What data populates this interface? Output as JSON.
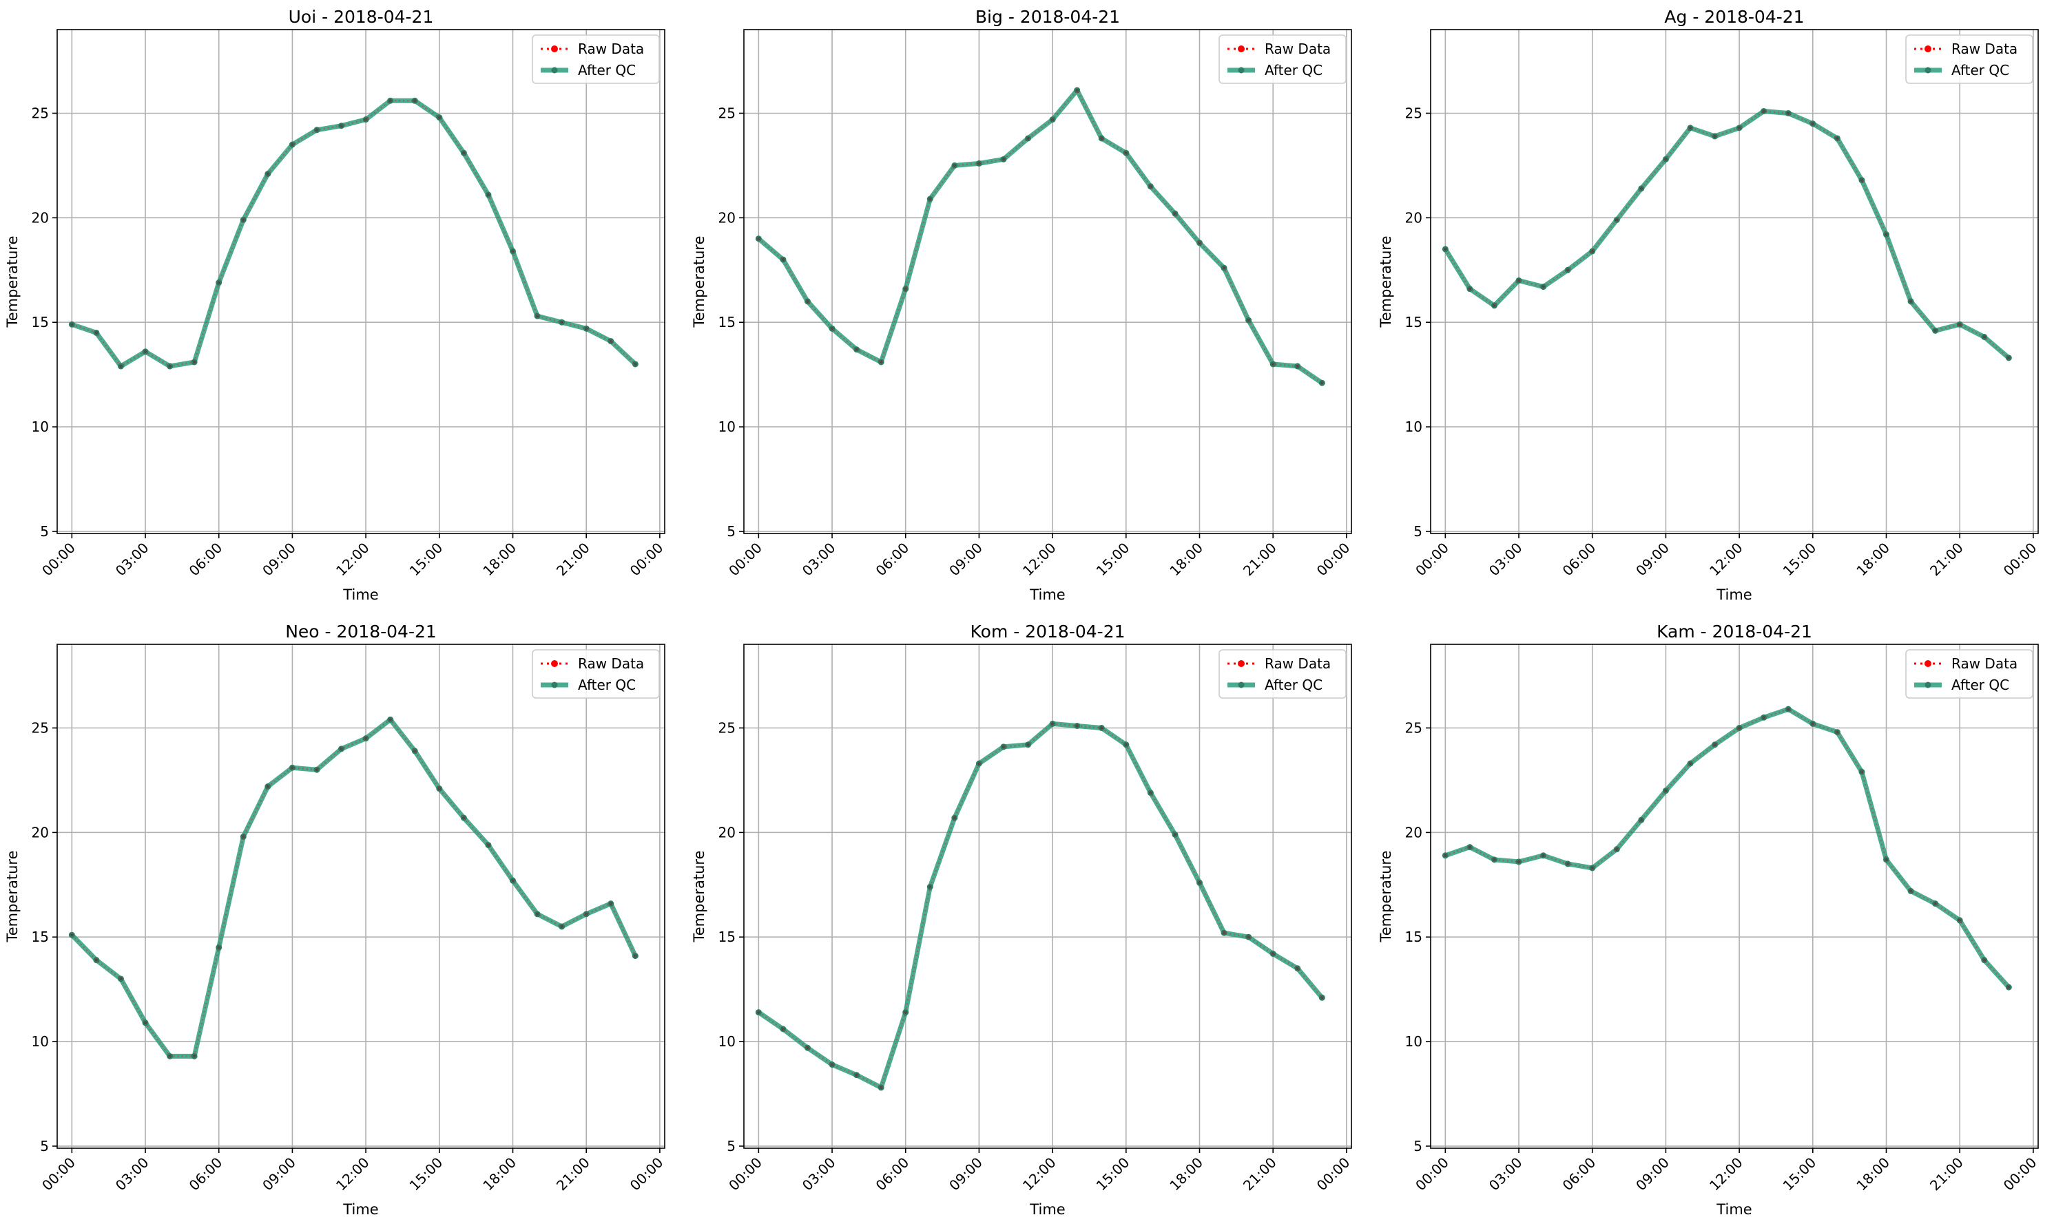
{
  "legend": {
    "raw_label": "Raw Data",
    "qc_label": "After QC"
  },
  "colors": {
    "raw": "#ff0000",
    "qc": "#2a9d7c",
    "qc_marker": "#2e7d64",
    "grid": "#b0b0b0",
    "axes": "#000000"
  },
  "chart_data": [
    {
      "type": "line",
      "title": "Uoi - 2018-04-21",
      "xlabel": "Time",
      "ylabel": "Temperature",
      "ylim": [
        4.9,
        29
      ],
      "xlim_hours": [
        -0.6,
        24.2
      ],
      "x_ticks": [
        "00:00",
        "03:00",
        "06:00",
        "09:00",
        "12:00",
        "15:00",
        "18:00",
        "21:00",
        "00:00"
      ],
      "y_ticks": [
        5,
        10,
        15,
        20,
        25
      ],
      "grid": true,
      "legend_position": "upper-right",
      "x_hours": [
        0,
        1,
        2,
        3,
        4,
        5,
        6,
        7,
        8,
        9,
        10,
        11,
        12,
        13,
        14,
        15,
        16,
        17,
        18,
        19,
        20,
        21,
        22,
        23
      ],
      "series": [
        {
          "name": "Raw Data",
          "values": [
            14.9,
            14.5,
            12.9,
            13.6,
            12.9,
            13.1,
            16.9,
            19.9,
            22.1,
            23.5,
            24.2,
            24.4,
            24.7,
            25.6,
            25.6,
            24.8,
            23.1,
            21.1,
            18.4,
            15.3,
            15.0,
            14.7,
            14.1,
            13.0
          ]
        },
        {
          "name": "After QC",
          "values": [
            14.9,
            14.5,
            12.9,
            13.6,
            12.9,
            13.1,
            16.9,
            19.9,
            22.1,
            23.5,
            24.2,
            24.4,
            24.7,
            25.6,
            25.6,
            24.8,
            23.1,
            21.1,
            18.4,
            15.3,
            15.0,
            14.7,
            14.1,
            13.0
          ]
        }
      ]
    },
    {
      "type": "line",
      "title": "Big - 2018-04-21",
      "xlabel": "Time",
      "ylabel": "Temperature",
      "ylim": [
        4.9,
        29
      ],
      "xlim_hours": [
        -0.6,
        24.2
      ],
      "x_ticks": [
        "00:00",
        "03:00",
        "06:00",
        "09:00",
        "12:00",
        "15:00",
        "18:00",
        "21:00",
        "00:00"
      ],
      "y_ticks": [
        5,
        10,
        15,
        20,
        25
      ],
      "grid": true,
      "legend_position": "upper-right",
      "x_hours": [
        0,
        1,
        2,
        3,
        4,
        5,
        6,
        7,
        8,
        9,
        10,
        11,
        12,
        13,
        14,
        15,
        16,
        17,
        18,
        19,
        20,
        21,
        22,
        23
      ],
      "series": [
        {
          "name": "Raw Data",
          "values": [
            19.0,
            18.0,
            16.0,
            14.7,
            13.7,
            13.1,
            16.6,
            20.9,
            22.5,
            22.6,
            22.8,
            23.8,
            24.7,
            26.1,
            23.8,
            23.1,
            21.5,
            20.2,
            18.8,
            17.6,
            15.1,
            13.0,
            12.9,
            12.1
          ]
        },
        {
          "name": "After QC",
          "values": [
            19.0,
            18.0,
            16.0,
            14.7,
            13.7,
            13.1,
            16.6,
            20.9,
            22.5,
            22.6,
            22.8,
            23.8,
            24.7,
            26.1,
            23.8,
            23.1,
            21.5,
            20.2,
            18.8,
            17.6,
            15.1,
            13.0,
            12.9,
            12.1
          ]
        }
      ]
    },
    {
      "type": "line",
      "title": "Ag - 2018-04-21",
      "xlabel": "Time",
      "ylabel": "Temperature",
      "ylim": [
        4.9,
        29
      ],
      "xlim_hours": [
        -0.6,
        24.2
      ],
      "x_ticks": [
        "00:00",
        "03:00",
        "06:00",
        "09:00",
        "12:00",
        "15:00",
        "18:00",
        "21:00",
        "00:00"
      ],
      "y_ticks": [
        5,
        10,
        15,
        20,
        25
      ],
      "grid": true,
      "legend_position": "upper-right",
      "x_hours": [
        0,
        1,
        2,
        3,
        4,
        5,
        6,
        7,
        8,
        9,
        10,
        11,
        12,
        13,
        14,
        15,
        16,
        17,
        18,
        19,
        20,
        21,
        22,
        23
      ],
      "series": [
        {
          "name": "Raw Data",
          "values": [
            18.5,
            16.6,
            15.8,
            17.0,
            16.7,
            17.5,
            18.4,
            19.9,
            21.4,
            22.8,
            24.3,
            23.9,
            24.3,
            25.1,
            25.0,
            24.5,
            23.8,
            21.8,
            19.2,
            16.0,
            14.6,
            14.9,
            14.3,
            13.3
          ]
        },
        {
          "name": "After QC",
          "values": [
            18.5,
            16.6,
            15.8,
            17.0,
            16.7,
            17.5,
            18.4,
            19.9,
            21.4,
            22.8,
            24.3,
            23.9,
            24.3,
            25.1,
            25.0,
            24.5,
            23.8,
            21.8,
            19.2,
            16.0,
            14.6,
            14.9,
            14.3,
            13.3
          ]
        }
      ]
    },
    {
      "type": "line",
      "title": "Neo - 2018-04-21",
      "xlabel": "Time",
      "ylabel": "Temperature",
      "ylim": [
        4.9,
        29
      ],
      "xlim_hours": [
        -0.6,
        24.2
      ],
      "x_ticks": [
        "00:00",
        "03:00",
        "06:00",
        "09:00",
        "12:00",
        "15:00",
        "18:00",
        "21:00",
        "00:00"
      ],
      "y_ticks": [
        5,
        10,
        15,
        20,
        25
      ],
      "grid": true,
      "legend_position": "upper-right",
      "x_hours": [
        0,
        1,
        2,
        3,
        4,
        5,
        6,
        7,
        8,
        9,
        10,
        11,
        12,
        13,
        14,
        15,
        16,
        17,
        18,
        19,
        20,
        21,
        22,
        23
      ],
      "series": [
        {
          "name": "Raw Data",
          "values": [
            15.1,
            13.9,
            13.0,
            10.9,
            9.3,
            9.3,
            14.5,
            19.8,
            22.2,
            23.1,
            23.0,
            24.0,
            24.5,
            25.4,
            23.9,
            22.1,
            20.7,
            19.4,
            17.7,
            16.1,
            15.5,
            16.1,
            16.6,
            14.1
          ]
        },
        {
          "name": "After QC",
          "values": [
            15.1,
            13.9,
            13.0,
            10.9,
            9.3,
            9.3,
            14.5,
            19.8,
            22.2,
            23.1,
            23.0,
            24.0,
            24.5,
            25.4,
            23.9,
            22.1,
            20.7,
            19.4,
            17.7,
            16.1,
            15.5,
            16.1,
            16.6,
            14.1
          ]
        }
      ]
    },
    {
      "type": "line",
      "title": "Kom - 2018-04-21",
      "xlabel": "Time",
      "ylabel": "Temperature",
      "ylim": [
        4.9,
        29
      ],
      "xlim_hours": [
        -0.6,
        24.2
      ],
      "x_ticks": [
        "00:00",
        "03:00",
        "06:00",
        "09:00",
        "12:00",
        "15:00",
        "18:00",
        "21:00",
        "00:00"
      ],
      "y_ticks": [
        5,
        10,
        15,
        20,
        25
      ],
      "grid": true,
      "legend_position": "upper-right",
      "x_hours": [
        0,
        1,
        2,
        3,
        4,
        5,
        6,
        7,
        8,
        9,
        10,
        11,
        12,
        13,
        14,
        15,
        16,
        17,
        18,
        19,
        20,
        21,
        22,
        23
      ],
      "series": [
        {
          "name": "Raw Data",
          "values": [
            11.4,
            10.6,
            9.7,
            8.9,
            8.4,
            7.8,
            11.4,
            17.4,
            20.7,
            23.3,
            24.1,
            24.2,
            25.2,
            25.1,
            25.0,
            24.2,
            21.9,
            19.9,
            17.6,
            15.2,
            15.0,
            14.2,
            13.5,
            12.1
          ]
        },
        {
          "name": "After QC",
          "values": [
            11.4,
            10.6,
            9.7,
            8.9,
            8.4,
            7.8,
            11.4,
            17.4,
            20.7,
            23.3,
            24.1,
            24.2,
            25.2,
            25.1,
            25.0,
            24.2,
            21.9,
            19.9,
            17.6,
            15.2,
            15.0,
            14.2,
            13.5,
            12.1
          ]
        }
      ]
    },
    {
      "type": "line",
      "title": "Kam - 2018-04-21",
      "xlabel": "Time",
      "ylabel": "Temperature",
      "ylim": [
        4.9,
        29
      ],
      "xlim_hours": [
        -0.6,
        24.2
      ],
      "x_ticks": [
        "00:00",
        "03:00",
        "06:00",
        "09:00",
        "12:00",
        "15:00",
        "18:00",
        "21:00",
        "00:00"
      ],
      "y_ticks": [
        5,
        10,
        15,
        20,
        25
      ],
      "grid": true,
      "legend_position": "upper-right",
      "x_hours": [
        0,
        1,
        2,
        3,
        4,
        5,
        6,
        7,
        8,
        9,
        10,
        11,
        12,
        13,
        14,
        15,
        16,
        17,
        18,
        19,
        20,
        21,
        22,
        23
      ],
      "series": [
        {
          "name": "Raw Data",
          "values": [
            18.9,
            19.3,
            18.7,
            18.6,
            18.9,
            18.5,
            18.3,
            19.2,
            20.6,
            22.0,
            23.3,
            24.2,
            25.0,
            25.5,
            25.9,
            25.2,
            24.8,
            22.9,
            18.7,
            17.2,
            16.6,
            15.8,
            13.9,
            12.6
          ]
        },
        {
          "name": "After QC",
          "values": [
            18.9,
            19.3,
            18.7,
            18.6,
            18.9,
            18.5,
            18.3,
            19.2,
            20.6,
            22.0,
            23.3,
            24.2,
            25.0,
            25.5,
            25.9,
            25.2,
            24.8,
            22.9,
            18.7,
            17.2,
            16.6,
            15.8,
            13.9,
            12.6
          ]
        }
      ]
    }
  ]
}
